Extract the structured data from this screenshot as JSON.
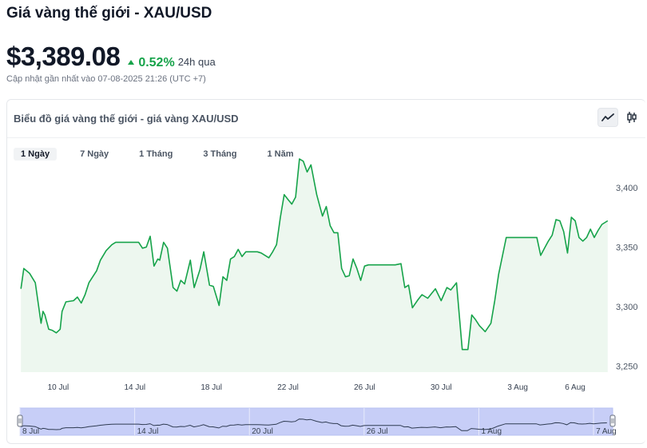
{
  "header": {
    "title": "Giá vàng thế giới - XAU/USD",
    "price": "$3,389.08",
    "change": "0.52%",
    "change_period": "24h qua",
    "updated": "Cập nhật gần nhất vào 07-08-2025 21:26 (UTC +7)"
  },
  "card": {
    "title": "Biểu đồ giá vàng thế giới - giá vàng XAU/USD",
    "chart_types": [
      "line-chart-icon",
      "candlestick-icon"
    ],
    "active_type": "line-chart-icon"
  },
  "range_tabs": [
    {
      "label": "1 Ngày",
      "active": true
    },
    {
      "label": "7 Ngày",
      "active": false
    },
    {
      "label": "1 Tháng",
      "active": false
    },
    {
      "label": "3 Tháng",
      "active": false
    },
    {
      "label": "1 Năm",
      "active": false
    }
  ],
  "colors": {
    "line": "#16a34a",
    "area": "#edf7ef",
    "navigator_fill": "#c7cef7",
    "positive": "#16a34a"
  },
  "chart_data": {
    "type": "area",
    "grid": false,
    "y_ticks": [
      "3,250",
      "3,300",
      "3,350",
      "3,400"
    ],
    "y_tick_values": [
      3250,
      3300,
      3350,
      3400
    ],
    "ylim": [
      3245,
      3430
    ],
    "x_ticks": [
      "10 Jul",
      "14 Jul",
      "18 Jul",
      "22 Jul",
      "26 Jul",
      "30 Jul",
      "3 Aug",
      "6 Aug"
    ],
    "x_tick_days": [
      10,
      14,
      18,
      22,
      26,
      30,
      34,
      37
    ],
    "navigator_ticks": [
      "8 Jul",
      "14 Jul",
      "20 Jul",
      "26 Jul",
      "1 Aug",
      "7 Aug"
    ],
    "navigator_tick_days": [
      8,
      14,
      20,
      26,
      32,
      38
    ],
    "xlim": [
      8,
      39
    ],
    "series": [
      {
        "x": [
          8.05,
          8.2,
          8.5,
          8.8,
          9.1,
          9.2,
          9.3,
          9.5,
          9.7,
          9.9,
          10.1,
          10.2,
          10.4,
          10.8,
          11.0,
          11.2,
          11.4,
          11.6,
          11.8,
          12.0,
          12.2,
          12.5,
          12.8,
          13.0,
          13.4,
          13.8,
          14.2,
          14.4,
          14.6,
          14.8,
          15.0,
          15.2,
          15.3,
          15.5,
          15.7,
          16.0,
          16.2,
          16.4,
          16.6,
          16.9,
          17.1,
          17.4,
          17.6,
          17.9,
          18.1,
          18.4,
          18.6,
          18.8,
          19.0,
          19.2,
          19.4,
          19.6,
          19.8,
          20.0,
          20.2,
          20.4,
          20.6,
          20.8,
          21.0,
          21.2,
          21.4,
          21.6,
          21.8,
          22.0,
          22.2,
          22.4,
          22.6,
          22.8,
          23.0,
          23.2,
          23.5,
          23.8,
          24.0,
          24.2,
          24.4,
          24.6,
          24.8,
          25.0,
          25.2,
          25.4,
          25.6,
          25.8,
          26.0,
          26.2,
          26.5,
          27.0,
          27.3,
          27.6,
          27.9,
          28.1,
          28.3,
          28.5,
          28.8,
          29.0,
          29.3,
          29.5,
          29.7,
          30.0,
          30.3,
          30.5,
          30.8,
          31.1,
          31.4,
          31.6,
          31.8,
          32.0,
          32.3,
          32.6,
          32.8,
          33.0,
          33.4,
          33.8,
          34.2,
          34.6,
          35.0,
          35.2,
          35.4,
          35.6,
          35.8,
          36.0,
          36.2,
          36.4,
          36.6,
          36.8,
          37.0,
          37.2,
          37.4,
          37.6,
          37.8,
          38.0,
          38.2,
          38.4,
          38.7
        ],
        "values": [
          3315,
          3332,
          3328,
          3320,
          3286,
          3296,
          3293,
          3281,
          3280,
          3278,
          3281,
          3296,
          3304,
          3305,
          3308,
          3303,
          3310,
          3320,
          3325,
          3330,
          3339,
          3347,
          3352,
          3354,
          3354,
          3354,
          3354,
          3349,
          3350,
          3359,
          3334,
          3340,
          3339,
          3354,
          3349,
          3316,
          3313,
          3322,
          3319,
          3339,
          3316,
          3331,
          3346,
          3318,
          3317,
          3301,
          3325,
          3322,
          3340,
          3342,
          3348,
          3342,
          3346,
          3346,
          3346,
          3346,
          3345,
          3343,
          3341,
          3346,
          3352,
          3375,
          3394,
          3390,
          3386,
          3392,
          3424,
          3422,
          3413,
          3419,
          3394,
          3376,
          3384,
          3368,
          3362,
          3362,
          3332,
          3325,
          3326,
          3340,
          3332,
          3322,
          3334,
          3335,
          3335,
          3335,
          3335,
          3335,
          3336,
          3316,
          3318,
          3299,
          3306,
          3310,
          3307,
          3311,
          3315,
          3305,
          3316,
          3314,
          3320,
          3264,
          3264,
          3293,
          3289,
          3284,
          3279,
          3286,
          3305,
          3327,
          3358,
          3358,
          3358,
          3358,
          3358,
          3343,
          3349,
          3355,
          3360,
          3373,
          3372,
          3363,
          3345,
          3375,
          3372,
          3358,
          3355,
          3358,
          3365,
          3358,
          3364,
          3369,
          3372
        ]
      }
    ]
  }
}
